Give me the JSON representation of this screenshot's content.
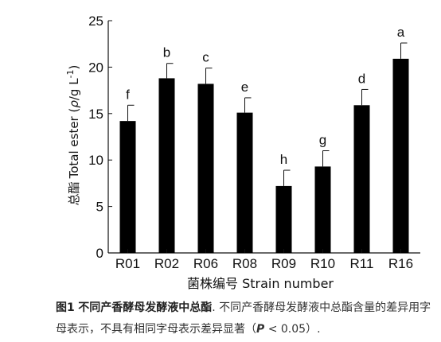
{
  "chart_data": {
    "type": "bar",
    "categories": [
      "R01",
      "R02",
      "R06",
      "R08",
      "R09",
      "R10",
      "R11",
      "R16"
    ],
    "values": [
      14.2,
      18.8,
      18.2,
      15.1,
      7.2,
      9.3,
      15.9,
      20.9
    ],
    "errors": [
      1.7,
      1.6,
      1.7,
      1.6,
      1.7,
      1.7,
      1.7,
      1.7
    ],
    "significance_letters": [
      "f",
      "b",
      "c",
      "e",
      "h",
      "g",
      "d",
      "a"
    ],
    "title": "",
    "xlabel": "菌株编号 Strain number",
    "ylabel": {
      "zh": "总酯",
      "en": "Total ester (",
      "symbol": "ρ",
      "unit": "/g L",
      "superscript": "-1",
      "close": ")"
    },
    "ylim": [
      0,
      25
    ],
    "yticks": [
      0,
      5,
      10,
      15,
      20,
      25
    ],
    "grid": false,
    "bar_color": "#000000"
  },
  "caption": {
    "label": "图1",
    "title": "不同产香酵母发酵液中总酯",
    "text": ". 不同产香酵母发酵液中总酯含量的差异用字母表示，不具有相同字母表示差异显著（",
    "p_symbol": "P",
    "p_rest": " < 0.05）."
  }
}
